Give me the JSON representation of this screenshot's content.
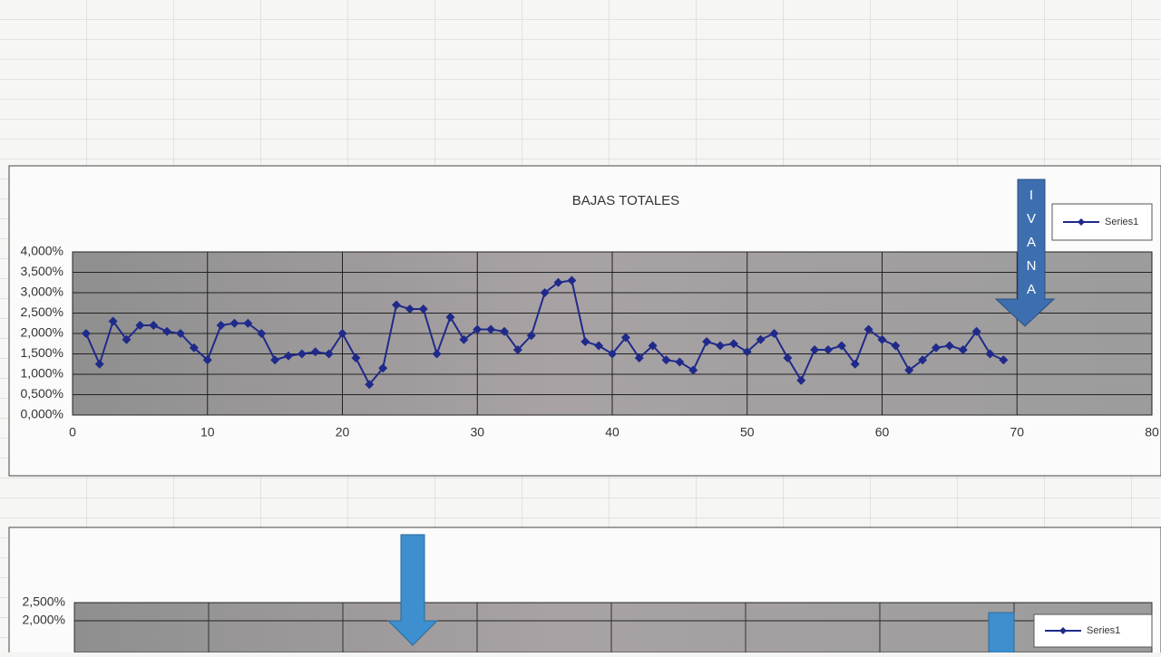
{
  "chart_data": [
    {
      "type": "line",
      "title": "BAJAS TOTALES",
      "x": [
        1,
        2,
        3,
        4,
        5,
        6,
        7,
        8,
        9,
        10,
        11,
        12,
        13,
        14,
        15,
        16,
        17,
        18,
        19,
        20,
        21,
        22,
        23,
        24,
        25,
        26,
        27,
        28,
        29,
        30,
        31,
        32,
        33,
        34,
        35,
        36,
        37,
        38,
        39,
        40,
        41,
        42,
        43,
        44,
        45,
        46,
        47,
        48,
        49,
        50,
        51,
        52,
        53,
        54,
        55,
        56,
        57,
        58,
        59,
        60,
        61,
        62,
        63,
        64,
        65,
        66,
        67,
        68,
        69
      ],
      "series": [
        {
          "name": "Series1",
          "color": "#1f2a8a",
          "values": [
            2.0,
            1.25,
            2.3,
            1.85,
            2.2,
            2.2,
            2.05,
            2.0,
            1.65,
            1.35,
            2.2,
            2.25,
            2.25,
            2.0,
            1.35,
            1.45,
            1.5,
            1.55,
            1.5,
            2.0,
            1.4,
            0.75,
            1.15,
            2.7,
            2.6,
            2.6,
            1.5,
            2.4,
            1.85,
            2.1,
            2.1,
            2.05,
            1.6,
            1.95,
            3.0,
            3.25,
            3.3,
            1.8,
            1.7,
            1.5,
            1.9,
            1.4,
            1.7,
            1.35,
            1.3,
            1.1,
            1.8,
            1.7,
            1.75,
            1.55,
            1.85,
            2.0,
            1.4,
            0.85,
            1.6,
            1.6,
            1.7,
            1.25,
            2.1,
            1.85,
            1.7,
            1.1,
            1.35,
            1.65,
            1.7,
            1.6,
            2.05,
            1.5,
            1.35
          ]
        }
      ],
      "xlim": [
        0,
        80
      ],
      "xticks": [
        0,
        10,
        20,
        30,
        40,
        50,
        60,
        70,
        80
      ],
      "ylim": [
        0,
        4
      ],
      "yticks": [
        {
          "value": 0,
          "label": "0,000%"
        },
        {
          "value": 0.5,
          "label": "0,500%"
        },
        {
          "value": 1,
          "label": "1,000%"
        },
        {
          "value": 1.5,
          "label": "1,500%"
        },
        {
          "value": 2,
          "label": "2,000%"
        },
        {
          "value": 2.5,
          "label": "2,500%"
        },
        {
          "value": 3,
          "label": "3,000%"
        },
        {
          "value": 3.5,
          "label": "3,500%"
        },
        {
          "value": 4,
          "label": "4,000%"
        }
      ],
      "grid": true,
      "legend": "top-right",
      "annotations": [
        "I",
        "V",
        "A",
        "N",
        "A"
      ]
    },
    {
      "type": "line",
      "series": [
        {
          "name": "Series1",
          "color": "#1f2a8a",
          "values": []
        }
      ],
      "ylim": [
        0,
        2.5
      ],
      "yticks": [
        {
          "value": 2,
          "label": "2,000%"
        },
        {
          "value": 2.5,
          "label": "2,500%"
        }
      ],
      "grid": true,
      "legend": "top-right"
    }
  ]
}
